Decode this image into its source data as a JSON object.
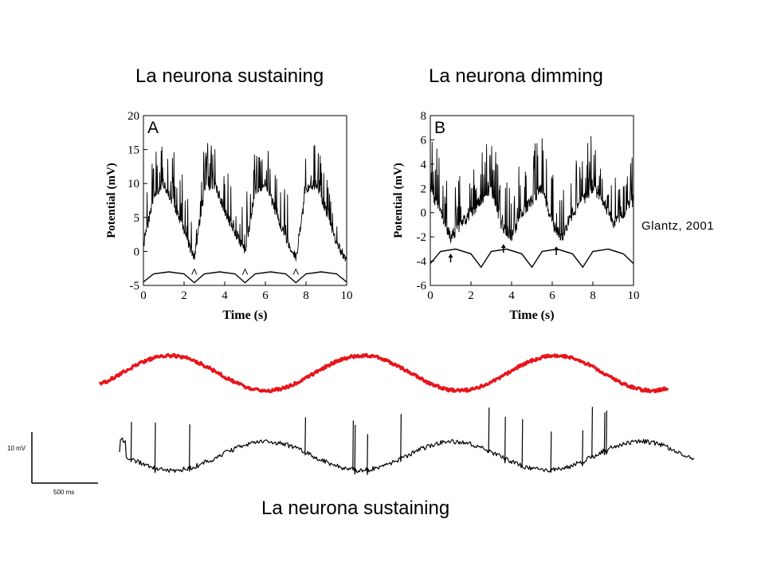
{
  "titles": {
    "left": "La neurona sustaining",
    "right": "La neurona dimming",
    "bottom": "La neurona sustaining"
  },
  "citation": "Glantz, 2001",
  "colors": {
    "stimulus_trace": "#e8141b",
    "recording_trace": "#000000"
  },
  "chart_data": [
    {
      "type": "line",
      "panel_label": "A",
      "xlabel": "Time (s)",
      "ylabel": "Potential (mV)",
      "xlim": [
        0,
        10
      ],
      "ylim": [
        -5,
        20
      ],
      "xticks": [
        0,
        2,
        4,
        6,
        8,
        10
      ],
      "yticks": [
        -5,
        0,
        5,
        10,
        15,
        20
      ],
      "series": [
        {
          "role": "membrane-potential",
          "x": [
            0,
            0.5,
            1.0,
            1.5,
            2.0,
            2.5,
            3.0,
            3.5,
            4.0,
            4.5,
            5.0,
            5.5,
            6.0,
            6.5,
            7.0,
            7.5,
            8.0,
            8.5,
            9.0,
            9.5,
            10.0
          ],
          "y": [
            1,
            8,
            10,
            7,
            3,
            -1,
            9,
            10,
            6,
            3,
            0,
            9,
            10,
            6,
            2,
            -1,
            9,
            10,
            6,
            1,
            -1
          ]
        },
        {
          "role": "stimulus",
          "x": [
            0,
            0.5,
            1.25,
            2.0,
            2.5,
            3.0,
            3.75,
            4.5,
            5.0,
            5.5,
            6.25,
            7.0,
            7.5,
            8.0,
            8.75,
            9.5,
            10.0
          ],
          "y": [
            -4.5,
            -3.3,
            -3.0,
            -3.3,
            -4.6,
            -3.3,
            -3.0,
            -3.3,
            -4.6,
            -3.3,
            -3.0,
            -3.3,
            -4.6,
            -3.3,
            -3.0,
            -3.3,
            -4.5
          ]
        }
      ],
      "markers": {
        "symbol": "^",
        "x": [
          2.5,
          5.0,
          7.5
        ],
        "y": -2.6
      }
    },
    {
      "type": "line",
      "panel_label": "B",
      "xlabel": "Time (s)",
      "ylabel": "Potential (mV)",
      "xlim": [
        0,
        10
      ],
      "ylim": [
        -6,
        8
      ],
      "xticks": [
        0,
        2,
        4,
        6,
        8,
        10
      ],
      "yticks": [
        -6,
        -4,
        -2,
        0,
        2,
        4,
        6,
        8
      ],
      "series": [
        {
          "role": "membrane-potential",
          "x": [
            0,
            0.5,
            1.0,
            1.5,
            2.0,
            2.5,
            3.0,
            3.5,
            4.0,
            4.5,
            5.0,
            5.5,
            6.0,
            6.5,
            7.0,
            7.5,
            8.0,
            8.5,
            9.0,
            9.5,
            10.0
          ],
          "y": [
            2,
            0,
            -2,
            -1,
            0,
            1,
            2,
            -1,
            -2,
            0,
            1,
            2,
            -1,
            -2,
            0,
            1,
            2,
            1,
            -1,
            0,
            1
          ]
        },
        {
          "role": "stimulus",
          "x": [
            0,
            0.5,
            1.25,
            2.0,
            2.5,
            3.0,
            3.75,
            4.5,
            5.0,
            5.5,
            6.25,
            7.0,
            7.5,
            8.0,
            8.75,
            9.5,
            10.0
          ],
          "y": [
            -4.2,
            -3.2,
            -3.0,
            -3.4,
            -4.5,
            -3.2,
            -3.0,
            -3.4,
            -4.5,
            -3.2,
            -3.0,
            -3.4,
            -4.5,
            -3.2,
            -3.0,
            -3.4,
            -4.2
          ]
        }
      ],
      "markers": {
        "symbol": "↑",
        "x": [
          1.0,
          3.6,
          6.2
        ]
      }
    }
  ],
  "bottom_scale_bar": {
    "vertical_label": "10 mV",
    "horizontal_label": "500 ms"
  }
}
